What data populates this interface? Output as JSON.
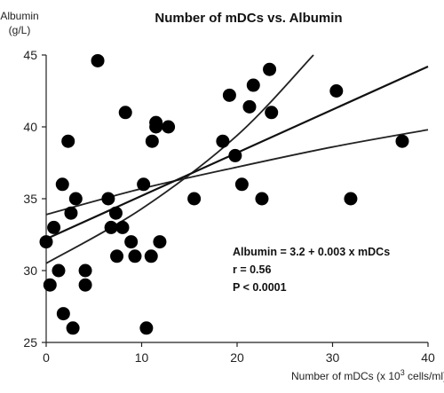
{
  "chart_data": {
    "type": "scatter",
    "title": "Number of mDCs vs. Albumin",
    "ylabel_line1": "Albumin",
    "ylabel_line2": "(g/L)",
    "xlabel_prefix": "Number of mDCs (x 10",
    "xlabel_sup": "3",
    "xlabel_suffix": " cells/ml)",
    "xlim": [
      0,
      40
    ],
    "ylim": [
      25,
      45
    ],
    "xticks": [
      0,
      10,
      20,
      30,
      40
    ],
    "yticks": [
      25,
      30,
      35,
      40,
      45
    ],
    "grid": false,
    "points": [
      {
        "x": 0.0,
        "y": 32.0
      },
      {
        "x": 0.4,
        "y": 29.0
      },
      {
        "x": 0.8,
        "y": 33.0
      },
      {
        "x": 1.3,
        "y": 30.0
      },
      {
        "x": 1.7,
        "y": 36.0
      },
      {
        "x": 1.8,
        "y": 27.0
      },
      {
        "x": 2.3,
        "y": 39.0
      },
      {
        "x": 2.6,
        "y": 34.0
      },
      {
        "x": 2.8,
        "y": 26.0
      },
      {
        "x": 3.1,
        "y": 35.0
      },
      {
        "x": 4.1,
        "y": 30.0
      },
      {
        "x": 4.1,
        "y": 29.0
      },
      {
        "x": 5.4,
        "y": 44.6
      },
      {
        "x": 6.5,
        "y": 35.0
      },
      {
        "x": 6.8,
        "y": 33.0
      },
      {
        "x": 7.3,
        "y": 34.0
      },
      {
        "x": 7.4,
        "y": 31.0
      },
      {
        "x": 8.0,
        "y": 33.0
      },
      {
        "x": 8.3,
        "y": 41.0
      },
      {
        "x": 8.9,
        "y": 32.0
      },
      {
        "x": 9.3,
        "y": 31.0
      },
      {
        "x": 10.2,
        "y": 36.0
      },
      {
        "x": 10.5,
        "y": 26.0
      },
      {
        "x": 11.0,
        "y": 31.0
      },
      {
        "x": 11.1,
        "y": 39.0
      },
      {
        "x": 11.5,
        "y": 40.0
      },
      {
        "x": 11.5,
        "y": 40.3
      },
      {
        "x": 11.9,
        "y": 32.0
      },
      {
        "x": 12.8,
        "y": 40.0
      },
      {
        "x": 15.5,
        "y": 35.0
      },
      {
        "x": 18.5,
        "y": 39.0
      },
      {
        "x": 19.2,
        "y": 42.2
      },
      {
        "x": 19.8,
        "y": 38.0
      },
      {
        "x": 20.5,
        "y": 36.0
      },
      {
        "x": 21.3,
        "y": 41.4
      },
      {
        "x": 21.7,
        "y": 42.9
      },
      {
        "x": 22.6,
        "y": 35.0
      },
      {
        "x": 23.4,
        "y": 44.0
      },
      {
        "x": 23.6,
        "y": 41.0
      },
      {
        "x": 30.4,
        "y": 42.5
      },
      {
        "x": 31.9,
        "y": 35.0
      },
      {
        "x": 37.3,
        "y": 39.0
      }
    ],
    "regression": {
      "fit": [
        [
          0,
          32.2
        ],
        [
          40,
          44.2
        ]
      ],
      "upper_ci": [
        [
          0,
          30.5
        ],
        [
          10,
          34.3
        ],
        [
          20,
          39.4
        ],
        [
          28,
          45.0
        ]
      ],
      "lower_ci": [
        [
          0,
          33.9
        ],
        [
          10,
          35.7
        ],
        [
          20,
          37.2
        ],
        [
          30,
          38.6
        ],
        [
          40,
          39.8
        ]
      ]
    },
    "annotations": [
      "Albumin = 3.2 + 0.003 x mDCs",
      "r = 0.56",
      "P < 0.0001"
    ]
  }
}
